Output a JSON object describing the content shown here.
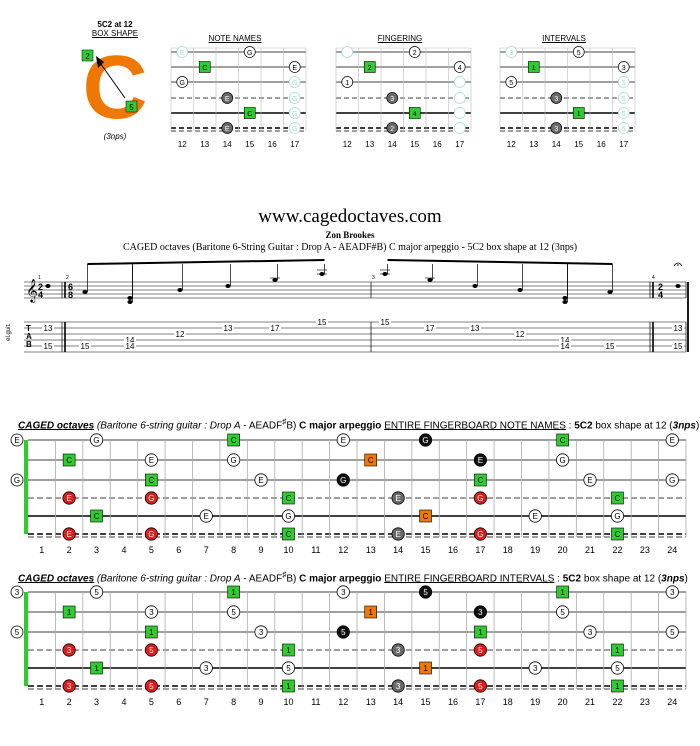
{
  "box_logo": {
    "title_line1": "5C2 at 12",
    "title_line2": "BOX SHAPE",
    "letter": "C",
    "upper_finger": "2",
    "lower_finger": "5",
    "footnote": "(3nps)",
    "color_orange": "#f07800",
    "color_green": "#2ecc2e"
  },
  "mini_panels": [
    {
      "title": "NOTE NAMES",
      "frets": [
        "12",
        "13",
        "14",
        "15",
        "16",
        "17"
      ],
      "labels": {
        "sq": "C",
        "open": "G",
        "eopen": "E",
        "gray": "E"
      }
    },
    {
      "title": "FINGERING",
      "frets": [
        "12",
        "13",
        "14",
        "15",
        "16",
        "17"
      ],
      "labels": {
        "sq1": "2",
        "sq2": "4",
        "f1": "1",
        "f2": "2",
        "f3": "3",
        "f4": "4"
      }
    },
    {
      "title": "INTERVALS",
      "frets": [
        "12",
        "13",
        "14",
        "15",
        "16",
        "17"
      ],
      "labels": {
        "sq": "1",
        "five": "5",
        "three": "3"
      }
    }
  ],
  "score": {
    "site": "www.cagedoctaves.com",
    "author": "Zon Brookes",
    "subtitle": "CAGED octaves (Baritone 6-String Guitar : Drop A - AEADF#B) C major arpeggio - 5C2 box shape at 12 (3nps)",
    "instrument": "el.guit.",
    "time1_top": "2",
    "time1_bot": "4",
    "time2_top": "6",
    "time2_bot": "8",
    "time3_top": "2",
    "time3_bot": "4",
    "measure_nums": [
      "1",
      "2",
      "3",
      "4"
    ],
    "tab_letters": [
      "T",
      "A",
      "B"
    ],
    "tab_numbers": [
      {
        "n": "13",
        "s": 2
      },
      {
        "n": "15",
        "s": 5
      },
      {
        "n": "15",
        "s": 5
      },
      {
        "n": "14",
        "s": 4
      },
      {
        "n": "14",
        "s": 5
      },
      {
        "n": "12",
        "s": 3
      },
      {
        "n": "13",
        "s": 2
      },
      {
        "n": "17",
        "s": 2
      },
      {
        "n": "15",
        "s": 1
      },
      {
        "n": "15",
        "s": 1
      },
      {
        "n": "17",
        "s": 2
      },
      {
        "n": "13",
        "s": 2
      },
      {
        "n": "12",
        "s": 3
      },
      {
        "n": "14",
        "s": 4
      },
      {
        "n": "14",
        "s": 5
      },
      {
        "n": "15",
        "s": 5
      },
      {
        "n": "13",
        "s": 2
      },
      {
        "n": "15",
        "s": 5
      }
    ]
  },
  "board1": {
    "header": {
      "a": "CAGED octaves",
      "b": " (Baritone 6-string guitar : ",
      "c": "Drop A",
      "d": " - AEADF",
      "e": "B) ",
      "f": "C major arpeggio",
      "g": " ",
      "h": "ENTIRE FINGERBOARD NOTE NAMES",
      "i": " : ",
      "j": "5C2",
      "k": " box shape at 12 (",
      "l": "3nps",
      "m": ")"
    },
    "sharp": "♯",
    "fret_numbers": [
      "1",
      "2",
      "3",
      "4",
      "5",
      "6",
      "7",
      "8",
      "9",
      "10",
      "11",
      "12",
      "13",
      "14",
      "15",
      "16",
      "17",
      "18",
      "19",
      "20",
      "21",
      "22",
      "23",
      "24"
    ],
    "open_notes": [
      "E",
      "",
      "G",
      "",
      "",
      ""
    ],
    "open_labels": {
      "s1": "E",
      "s3": "G"
    },
    "notes": [
      {
        "f": 2,
        "s": 2,
        "t": "C",
        "k": "sq"
      },
      {
        "f": 3,
        "s": 1,
        "t": "G",
        "k": "o"
      },
      {
        "f": 5,
        "s": 2,
        "t": "E",
        "k": "o"
      },
      {
        "f": 5,
        "s": 3,
        "t": "C",
        "k": "sq"
      },
      {
        "f": 2,
        "s": 4,
        "t": "E",
        "k": "red"
      },
      {
        "f": 5,
        "s": 4,
        "t": "G",
        "k": "red"
      },
      {
        "f": 3,
        "s": 5,
        "t": "C",
        "k": "sq"
      },
      {
        "f": 2,
        "s": 6,
        "t": "E",
        "k": "red"
      },
      {
        "f": 5,
        "s": 6,
        "t": "G",
        "k": "red"
      },
      {
        "f": 8,
        "s": 1,
        "t": "C",
        "k": "sq"
      },
      {
        "f": 8,
        "s": 2,
        "t": "G",
        "k": "o"
      },
      {
        "f": 7,
        "s": 5,
        "t": "E",
        "k": "o"
      },
      {
        "f": 9,
        "s": 3,
        "t": "E",
        "k": "o"
      },
      {
        "f": 10,
        "s": 4,
        "t": "C",
        "k": "sq"
      },
      {
        "f": 10,
        "s": 5,
        "t": "G",
        "k": "o"
      },
      {
        "f": 10,
        "s": 6,
        "t": "C",
        "k": "sq"
      },
      {
        "f": 12,
        "s": 1,
        "t": "E",
        "k": "o"
      },
      {
        "f": 12,
        "s": 3,
        "t": "G",
        "k": "blk"
      },
      {
        "f": 13,
        "s": 2,
        "t": "C",
        "k": "or"
      },
      {
        "f": 14,
        "s": 4,
        "t": "E",
        "k": "gry"
      },
      {
        "f": 15,
        "s": 5,
        "t": "C",
        "k": "or"
      },
      {
        "f": 14,
        "s": 6,
        "t": "E",
        "k": "gry"
      },
      {
        "f": 15,
        "s": 1,
        "t": "G",
        "k": "blk"
      },
      {
        "f": 17,
        "s": 2,
        "t": "E",
        "k": "blk"
      },
      {
        "f": 17,
        "s": 3,
        "t": "C",
        "k": "sq"
      },
      {
        "f": 17,
        "s": 4,
        "t": "G",
        "k": "red"
      },
      {
        "f": 17,
        "s": 6,
        "t": "G",
        "k": "red"
      },
      {
        "f": 19,
        "s": 5,
        "t": "E",
        "k": "o"
      },
      {
        "f": 20,
        "s": 1,
        "t": "C",
        "k": "sq"
      },
      {
        "f": 20,
        "s": 2,
        "t": "G",
        "k": "o"
      },
      {
        "f": 21,
        "s": 3,
        "t": "E",
        "k": "o"
      },
      {
        "f": 22,
        "s": 4,
        "t": "C",
        "k": "sq"
      },
      {
        "f": 22,
        "s": 5,
        "t": "G",
        "k": "o"
      },
      {
        "f": 22,
        "s": 6,
        "t": "C",
        "k": "sq"
      },
      {
        "f": 24,
        "s": 1,
        "t": "E",
        "k": "o"
      },
      {
        "f": 24,
        "s": 3,
        "t": "G",
        "k": "o"
      }
    ]
  },
  "board2": {
    "header": {
      "a": "CAGED octaves",
      "b": " (Baritone 6-string guitar : ",
      "c": "Drop A",
      "d": " - AEADF",
      "e": "B) ",
      "f": "C major arpeggio",
      "g": " ",
      "h": "ENTIRE FINGERBOARD INTERVALS",
      "i": " : ",
      "j": "5C2",
      "k": " box shape at 12 (",
      "l": "3nps",
      "m": ")"
    },
    "sharp": "♯",
    "fret_numbers": [
      "1",
      "2",
      "3",
      "4",
      "5",
      "6",
      "7",
      "8",
      "9",
      "10",
      "11",
      "12",
      "13",
      "14",
      "15",
      "16",
      "17",
      "18",
      "19",
      "20",
      "21",
      "22",
      "23",
      "24"
    ],
    "open_labels": {
      "s1": "3",
      "s3": "5"
    },
    "notes": [
      {
        "f": 2,
        "s": 2,
        "t": "1",
        "k": "sq"
      },
      {
        "f": 3,
        "s": 1,
        "t": "5",
        "k": "o"
      },
      {
        "f": 5,
        "s": 2,
        "t": "3",
        "k": "o"
      },
      {
        "f": 5,
        "s": 3,
        "t": "1",
        "k": "sq"
      },
      {
        "f": 2,
        "s": 4,
        "t": "3",
        "k": "red"
      },
      {
        "f": 5,
        "s": 4,
        "t": "5",
        "k": "red"
      },
      {
        "f": 3,
        "s": 5,
        "t": "1",
        "k": "sq"
      },
      {
        "f": 2,
        "s": 6,
        "t": "3",
        "k": "red"
      },
      {
        "f": 5,
        "s": 6,
        "t": "5",
        "k": "red"
      },
      {
        "f": 8,
        "s": 1,
        "t": "1",
        "k": "sq"
      },
      {
        "f": 8,
        "s": 2,
        "t": "5",
        "k": "o"
      },
      {
        "f": 7,
        "s": 5,
        "t": "3",
        "k": "o"
      },
      {
        "f": 9,
        "s": 3,
        "t": "3",
        "k": "o"
      },
      {
        "f": 10,
        "s": 4,
        "t": "1",
        "k": "sq"
      },
      {
        "f": 10,
        "s": 5,
        "t": "5",
        "k": "o"
      },
      {
        "f": 10,
        "s": 6,
        "t": "1",
        "k": "sq"
      },
      {
        "f": 12,
        "s": 1,
        "t": "3",
        "k": "o"
      },
      {
        "f": 12,
        "s": 3,
        "t": "5",
        "k": "blk"
      },
      {
        "f": 13,
        "s": 2,
        "t": "1",
        "k": "or"
      },
      {
        "f": 14,
        "s": 4,
        "t": "3",
        "k": "gry"
      },
      {
        "f": 15,
        "s": 5,
        "t": "1",
        "k": "or"
      },
      {
        "f": 14,
        "s": 6,
        "t": "3",
        "k": "gry"
      },
      {
        "f": 15,
        "s": 1,
        "t": "5",
        "k": "blk"
      },
      {
        "f": 17,
        "s": 2,
        "t": "3",
        "k": "blk"
      },
      {
        "f": 17,
        "s": 3,
        "t": "1",
        "k": "sq"
      },
      {
        "f": 17,
        "s": 4,
        "t": "5",
        "k": "red"
      },
      {
        "f": 17,
        "s": 6,
        "t": "5",
        "k": "red"
      },
      {
        "f": 19,
        "s": 5,
        "t": "3",
        "k": "o"
      },
      {
        "f": 20,
        "s": 1,
        "t": "1",
        "k": "sq"
      },
      {
        "f": 20,
        "s": 2,
        "t": "5",
        "k": "o"
      },
      {
        "f": 21,
        "s": 3,
        "t": "3",
        "k": "o"
      },
      {
        "f": 22,
        "s": 4,
        "t": "1",
        "k": "sq"
      },
      {
        "f": 22,
        "s": 5,
        "t": "5",
        "k": "o"
      },
      {
        "f": 22,
        "s": 6,
        "t": "1",
        "k": "sq"
      },
      {
        "f": 24,
        "s": 1,
        "t": "3",
        "k": "o"
      },
      {
        "f": 24,
        "s": 3,
        "t": "5",
        "k": "o"
      }
    ]
  },
  "colors": {
    "green": "#2ecc2e",
    "red": "#e21b1b",
    "orange": "#f07800",
    "gray": "#6a6a6a",
    "black": "#111111",
    "cyan": "#9fd8d8"
  }
}
